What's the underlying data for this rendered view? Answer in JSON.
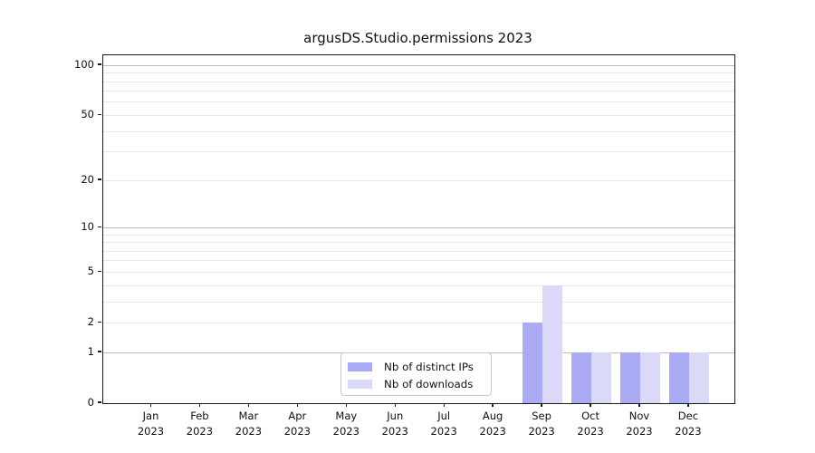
{
  "figure": {
    "background": "#ffffff"
  },
  "chart_data": {
    "type": "bar",
    "title": "argusDS.Studio.permissions 2023",
    "categories": [
      "Jan 2023",
      "Feb 2023",
      "Mar 2023",
      "Apr 2023",
      "May 2023",
      "Jun 2023",
      "Jul 2023",
      "Aug 2023",
      "Sep 2023",
      "Oct 2023",
      "Nov 2023",
      "Dec 2023"
    ],
    "x_tick_months": [
      "Jan",
      "Feb",
      "Mar",
      "Apr",
      "May",
      "Jun",
      "Jul",
      "Aug",
      "Sep",
      "Oct",
      "Nov",
      "Dec"
    ],
    "x_tick_year": "2023",
    "series": [
      {
        "name": "Nb of distinct IPs",
        "color": "#aaaaf5",
        "values": [
          0,
          0,
          0,
          0,
          0,
          0,
          0,
          0,
          2,
          1,
          1,
          1
        ]
      },
      {
        "name": "Nb of downloads",
        "color": "#dadaf8",
        "values": [
          0,
          0,
          0,
          0,
          0,
          0,
          0,
          0,
          4,
          1,
          1,
          1
        ]
      }
    ],
    "y_axis": {
      "scale": "log10(1+v)",
      "tick_values": [
        100,
        50,
        20,
        10,
        5,
        2,
        1,
        0
      ],
      "tick_labels": [
        "100",
        "50",
        "20",
        "10",
        "5",
        "2",
        "1",
        "0"
      ],
      "major_grid_values": [
        1,
        10,
        100
      ],
      "minor_grid_values": [
        2,
        3,
        4,
        5,
        6,
        7,
        8,
        9,
        20,
        30,
        40,
        50,
        60,
        70,
        80,
        90
      ],
      "ylim": [
        0,
        114
      ]
    },
    "grid": "horizontal",
    "legend_position": "lower center"
  },
  "legend": {
    "entries": [
      {
        "label": "Nb of distinct IPs",
        "color": "#aaaaf5"
      },
      {
        "label": "Nb of downloads",
        "color": "#dadaf8"
      }
    ]
  }
}
